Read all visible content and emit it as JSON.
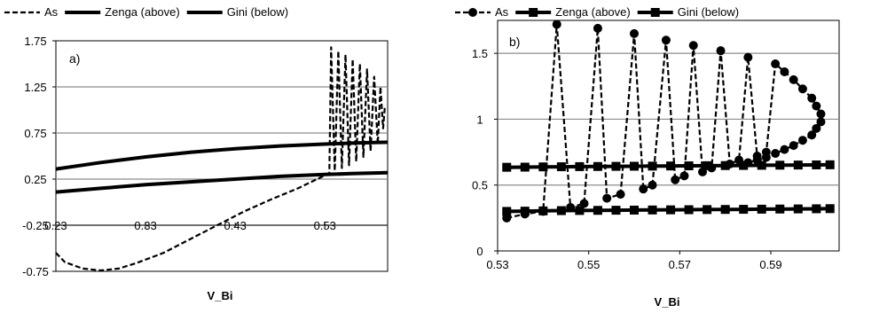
{
  "chart_data": [
    {
      "type": "line",
      "panel_label": "a)",
      "xlabel": "V_Bi",
      "ylabel": "",
      "xlim": [
        0.23,
        0.6
      ],
      "ylim": [
        -0.75,
        1.75
      ],
      "x_ticks": [
        "0.23",
        "0.33",
        "0.43",
        "0.53"
      ],
      "y_ticks": [
        "-0.75",
        "-0.25",
        "0.25",
        "0.75",
        "1.25",
        "1.75"
      ],
      "x_axis_crosses_y": -0.25,
      "grid": "horizontal",
      "legend_position": "top",
      "series": [
        {
          "name": "As",
          "style": "dashed",
          "marker": "none",
          "x": [
            0.23,
            0.24,
            0.26,
            0.28,
            0.3,
            0.32,
            0.35,
            0.38,
            0.41,
            0.44,
            0.47,
            0.5,
            0.53,
            0.535,
            0.537,
            0.541,
            0.545,
            0.549,
            0.553,
            0.557,
            0.561,
            0.565,
            0.569,
            0.573,
            0.577,
            0.581,
            0.585,
            0.589,
            0.592,
            0.595,
            0.597
          ],
          "y": [
            -0.55,
            -0.65,
            -0.72,
            -0.74,
            -0.72,
            -0.66,
            -0.55,
            -0.4,
            -0.25,
            -0.1,
            0.03,
            0.15,
            0.29,
            0.32,
            1.68,
            0.34,
            1.64,
            0.37,
            1.6,
            0.4,
            1.55,
            0.44,
            1.5,
            0.49,
            1.44,
            0.55,
            1.36,
            0.63,
            1.25,
            0.8,
            1.05
          ]
        },
        {
          "name": "Zenga (above)",
          "style": "solid",
          "marker": "none",
          "x": [
            0.23,
            0.28,
            0.33,
            0.38,
            0.43,
            0.48,
            0.53,
            0.56,
            0.6
          ],
          "y": [
            0.36,
            0.43,
            0.49,
            0.54,
            0.58,
            0.61,
            0.63,
            0.64,
            0.65
          ]
        },
        {
          "name": "Gini (below)",
          "style": "solid",
          "marker": "none",
          "x": [
            0.23,
            0.28,
            0.33,
            0.38,
            0.43,
            0.48,
            0.53,
            0.56,
            0.6
          ],
          "y": [
            0.11,
            0.15,
            0.19,
            0.22,
            0.25,
            0.28,
            0.3,
            0.31,
            0.32
          ]
        }
      ]
    },
    {
      "type": "line",
      "panel_label": "b)",
      "xlabel": "V_Bi",
      "ylabel": "",
      "xlim": [
        0.53,
        0.605
      ],
      "ylim": [
        0,
        1.75
      ],
      "x_ticks": [
        "0.53",
        "0.55",
        "0.57",
        "0.59"
      ],
      "y_ticks": [
        "0",
        "0.5",
        "1",
        "1.5"
      ],
      "grid": "horizontal",
      "legend_position": "top",
      "series": [
        {
          "name": "As",
          "style": "dashed",
          "marker": "circle",
          "x": [
            0.532,
            0.536,
            0.54,
            0.543,
            0.546,
            0.549,
            0.552,
            0.554,
            0.557,
            0.56,
            0.562,
            0.564,
            0.567,
            0.569,
            0.571,
            0.573,
            0.575,
            0.577,
            0.579,
            0.581,
            0.583,
            0.585,
            0.587,
            0.589,
            0.591,
            0.593,
            0.595,
            0.597,
            0.599,
            0.6,
            0.601,
            0.601,
            0.6,
            0.599,
            0.597,
            0.595,
            0.593,
            0.591,
            0.589,
            0.587,
            0.585
          ],
          "y": [
            0.25,
            0.28,
            0.3,
            1.72,
            0.33,
            0.36,
            1.69,
            0.4,
            0.43,
            1.65,
            0.47,
            0.5,
            1.6,
            0.54,
            0.57,
            1.56,
            0.6,
            0.63,
            1.52,
            0.66,
            0.69,
            1.47,
            0.72,
            0.75,
            1.42,
            1.36,
            1.3,
            1.23,
            1.16,
            1.1,
            1.04,
            0.98,
            0.93,
            0.88,
            0.84,
            0.8,
            0.77,
            0.74,
            0.71,
            0.69,
            0.67
          ]
        },
        {
          "name": "Zenga (above)",
          "style": "solid",
          "marker": "square",
          "x": [
            0.532,
            0.536,
            0.54,
            0.544,
            0.548,
            0.552,
            0.556,
            0.56,
            0.564,
            0.568,
            0.572,
            0.576,
            0.58,
            0.584,
            0.588,
            0.592,
            0.596,
            0.6,
            0.603
          ],
          "y": [
            0.635,
            0.636,
            0.638,
            0.639,
            0.64,
            0.641,
            0.642,
            0.643,
            0.644,
            0.645,
            0.646,
            0.647,
            0.648,
            0.649,
            0.65,
            0.651,
            0.652,
            0.653,
            0.654
          ]
        },
        {
          "name": "Gini (below)",
          "style": "solid",
          "marker": "square",
          "x": [
            0.532,
            0.536,
            0.54,
            0.544,
            0.548,
            0.552,
            0.556,
            0.56,
            0.564,
            0.568,
            0.572,
            0.576,
            0.58,
            0.584,
            0.588,
            0.592,
            0.596,
            0.6,
            0.603
          ],
          "y": [
            0.3,
            0.302,
            0.304,
            0.306,
            0.307,
            0.308,
            0.309,
            0.31,
            0.311,
            0.312,
            0.313,
            0.314,
            0.315,
            0.316,
            0.317,
            0.318,
            0.319,
            0.32,
            0.321
          ]
        }
      ]
    }
  ]
}
